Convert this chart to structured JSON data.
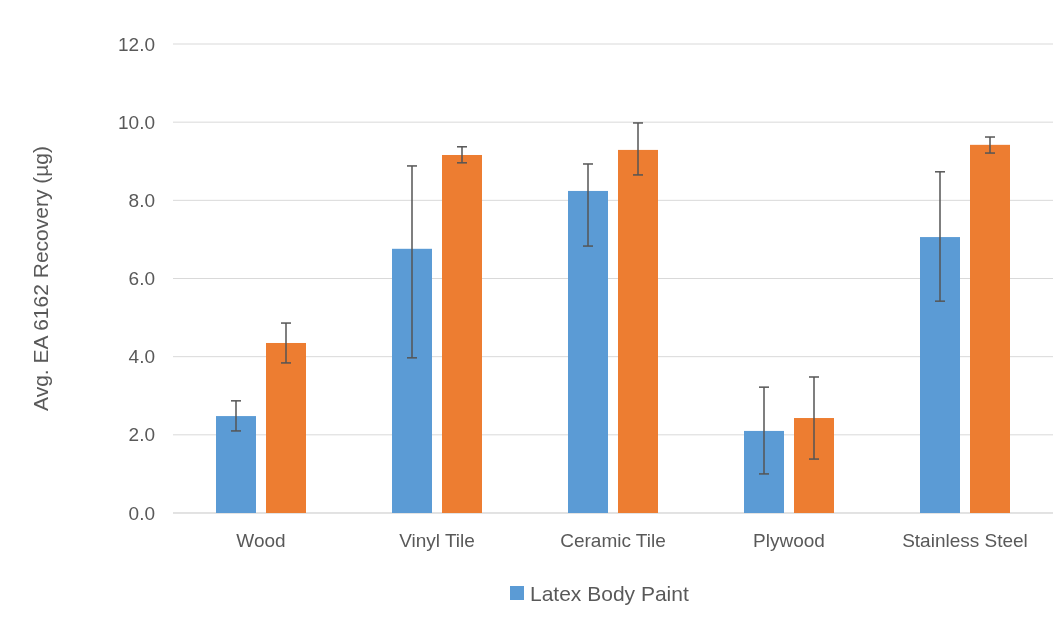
{
  "chart_data": {
    "type": "bar",
    "ylabel": "Avg. EA 6162 Recovery (µg)",
    "categories": [
      "Wood",
      "Vinyl Tile",
      "Ceramic Tile",
      "Plywood",
      "Stainless Steel"
    ],
    "series": [
      {
        "name": "Latex Body Paint",
        "color": "#5b9bd5",
        "values": [
          2.48,
          6.76,
          8.24,
          2.1,
          7.06
        ],
        "errors": [
          [
            2.1,
            2.87
          ],
          [
            3.97,
            8.88
          ],
          [
            6.83,
            8.93
          ],
          [
            1.0,
            3.22
          ],
          [
            5.42,
            8.73
          ]
        ]
      },
      {
        "color": "#ed7d31",
        "values": [
          4.35,
          9.16,
          9.29,
          2.43,
          9.42
        ],
        "errors": [
          [
            3.84,
            4.86
          ],
          [
            8.96,
            9.37
          ],
          [
            8.65,
            9.98
          ],
          [
            1.38,
            3.48
          ],
          [
            9.21,
            9.62
          ]
        ]
      }
    ],
    "ylim": [
      0,
      12
    ],
    "yticks": [
      {
        "value": 0,
        "label": "0.0"
      },
      {
        "value": 2,
        "label": "2.0"
      },
      {
        "value": 4,
        "label": "4.0"
      },
      {
        "value": 6,
        "label": "6.0"
      },
      {
        "value": 8,
        "label": "8.0"
      },
      {
        "value": 10,
        "label": "10.0"
      },
      {
        "value": 12,
        "label": "12.0"
      }
    ],
    "grid": "y",
    "legend": "bottom"
  }
}
